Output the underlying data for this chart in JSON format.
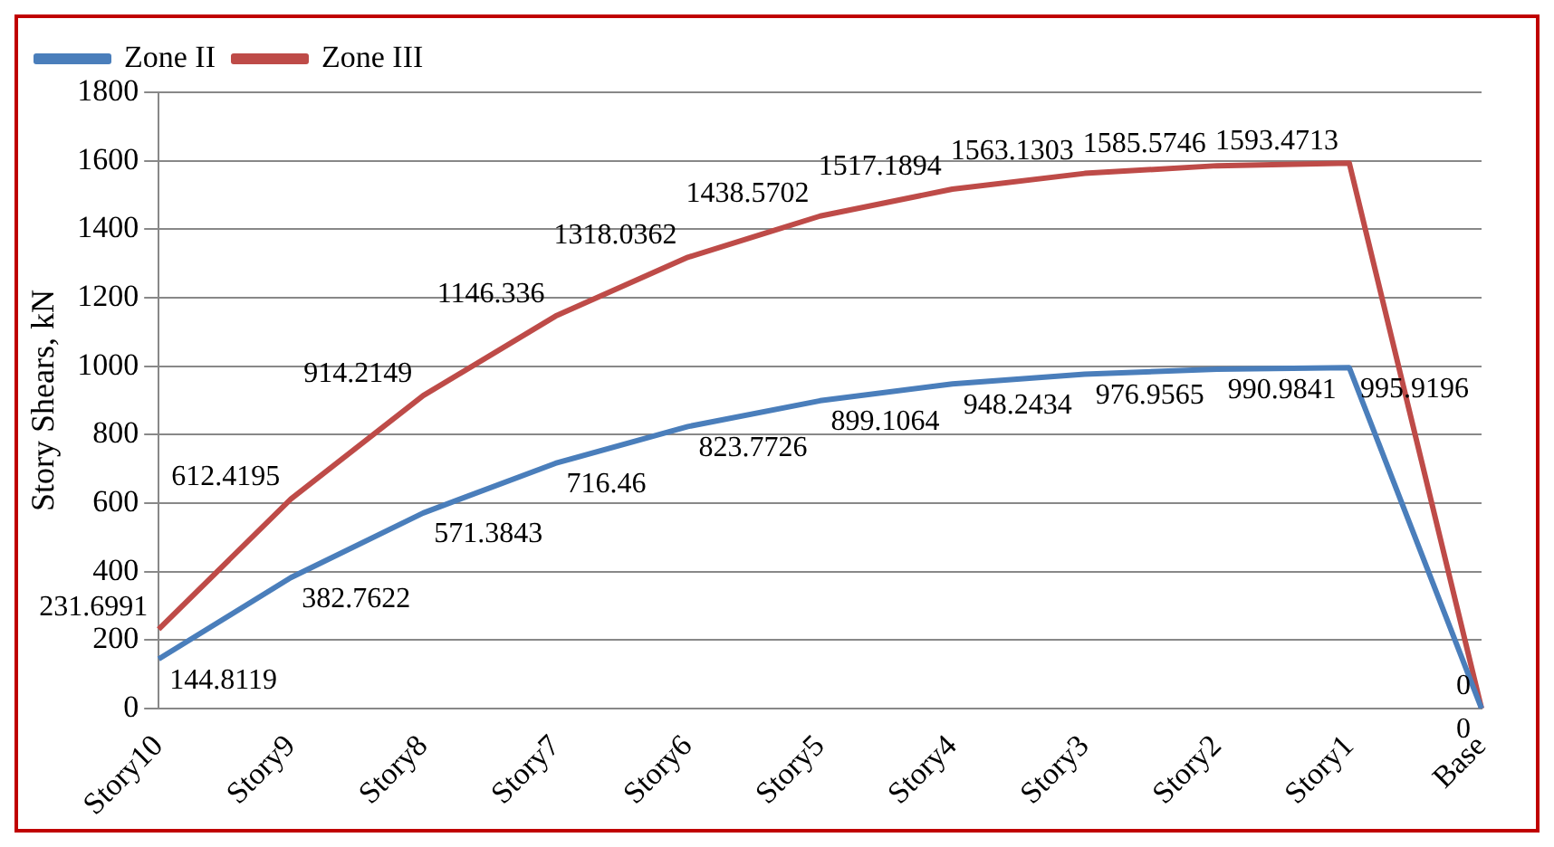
{
  "chart_data": {
    "type": "line",
    "ylabel": "Story Shears, kN",
    "categories": [
      "Story10",
      "Story9",
      "Story8",
      "Story7",
      "Story6",
      "Story5",
      "Story4",
      "Story3",
      "Story2",
      "Story1",
      "Base"
    ],
    "series": [
      {
        "name": "Zone II",
        "color": "#4a7ebb",
        "values": [
          144.8119,
          382.7622,
          571.3843,
          716.46,
          823.7726,
          899.1064,
          948.2434,
          976.9565,
          990.9841,
          995.9196,
          0
        ]
      },
      {
        "name": "Zone III",
        "color": "#be4b48",
        "values": [
          231.6991,
          612.4195,
          914.2149,
          1146.336,
          1318.0362,
          1438.5702,
          1517.1894,
          1563.1303,
          1585.5746,
          1593.4713,
          0
        ]
      }
    ],
    "ylim": [
      0,
      1800
    ],
    "yticks": [
      0,
      200,
      400,
      600,
      800,
      1000,
      1200,
      1400,
      1600,
      1800
    ],
    "grid": "y",
    "legend": "top left",
    "marker": "none",
    "line_style": "solid",
    "data_labels": true
  }
}
